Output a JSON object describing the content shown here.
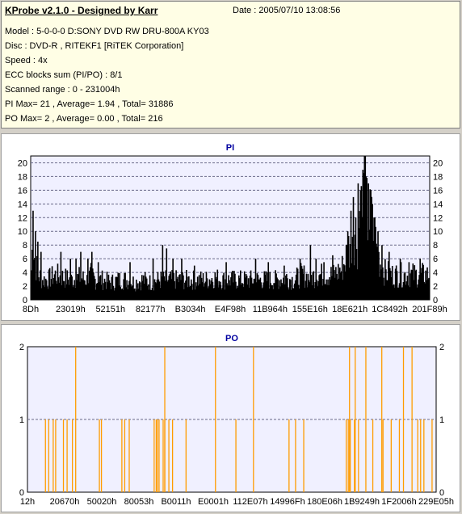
{
  "header": {
    "title": "KProbe v2.1.0 - Designed by Karr",
    "date": "Date : 2005/07/10 13:08:56",
    "lines": [
      "Model : 5-0-0-0 D:SONY    DVD RW DRU-800A  KY03",
      "Disc : DVD-R , RITEKF1 [RiTEK Corporation]",
      "Speed : 4x",
      "ECC blocks sum (PI/PO) : 8/1",
      "Scanned range : 0 - 231004h",
      "PI Max= 21 , Average= 1.94 , Total= 31886",
      "PO Max= 2 , Average= 0.00 , Total= 216"
    ]
  },
  "colors": {
    "panel_bg": "#f0f0ff",
    "pi_bar": "#000000",
    "po_bar": "#ff9c00",
    "grid": "#6a6a8a"
  },
  "chart_data": [
    {
      "type": "bar",
      "title": "PI",
      "xlim": [
        0,
        231004
      ],
      "ylim": [
        0,
        21
      ],
      "yticks": [
        0,
        2,
        4,
        6,
        8,
        10,
        12,
        14,
        16,
        18,
        20
      ],
      "xtick_labels": [
        "8Dh",
        "23019h",
        "52151h",
        "82177h",
        "B3034h",
        "E4F98h",
        "11B964h",
        "155E16h",
        "18E621h",
        "1C8492h",
        "201F89h"
      ],
      "grid": true,
      "profile": [
        [
          0,
          6
        ],
        [
          2,
          13
        ],
        [
          4,
          9
        ],
        [
          6,
          7
        ],
        [
          9,
          5
        ],
        [
          14,
          4
        ],
        [
          20,
          4
        ],
        [
          30,
          5
        ],
        [
          40,
          4.5
        ],
        [
          50,
          4
        ],
        [
          60,
          4.5
        ],
        [
          70,
          4
        ],
        [
          75,
          5
        ],
        [
          80,
          4
        ],
        [
          90,
          4
        ],
        [
          100,
          3.5
        ],
        [
          110,
          4
        ],
        [
          120,
          4
        ],
        [
          130,
          3.5
        ],
        [
          140,
          4
        ],
        [
          150,
          3.5
        ],
        [
          160,
          4
        ],
        [
          170,
          4
        ],
        [
          180,
          4
        ],
        [
          190,
          4
        ],
        [
          200,
          4
        ],
        [
          210,
          4
        ],
        [
          220,
          4
        ],
        [
          230,
          4.5
        ],
        [
          240,
          4
        ],
        [
          250,
          4
        ],
        [
          260,
          4
        ],
        [
          270,
          4
        ],
        [
          280,
          4
        ],
        [
          290,
          4
        ],
        [
          300,
          4
        ],
        [
          310,
          4
        ],
        [
          320,
          4.5
        ],
        [
          330,
          4
        ],
        [
          340,
          5
        ],
        [
          350,
          4.5
        ],
        [
          360,
          5
        ],
        [
          370,
          5
        ],
        [
          380,
          5
        ],
        [
          390,
          6
        ],
        [
          395,
          8
        ],
        [
          400,
          11
        ],
        [
          405,
          15
        ],
        [
          410,
          12
        ],
        [
          413,
          17
        ],
        [
          416,
          18
        ],
        [
          419,
          21
        ],
        [
          422,
          17
        ],
        [
          425,
          16
        ],
        [
          428,
          15
        ],
        [
          432,
          12
        ],
        [
          436,
          9
        ],
        [
          440,
          7
        ],
        [
          445,
          5.5
        ],
        [
          455,
          5
        ],
        [
          470,
          5
        ],
        [
          482,
          5
        ],
        [
          495,
          5
        ],
        [
          500,
          5
        ]
      ],
      "spikes": [
        [
          2,
          13
        ],
        [
          5,
          10
        ],
        [
          8,
          8.5
        ],
        [
          12,
          7
        ],
        [
          37,
          7
        ],
        [
          49,
          6
        ],
        [
          56,
          6
        ],
        [
          62,
          7
        ],
        [
          71,
          6
        ],
        [
          76,
          7
        ],
        [
          84,
          5.5
        ],
        [
          124,
          5.5
        ],
        [
          153,
          6
        ],
        [
          165,
          8
        ],
        [
          170,
          7.5
        ],
        [
          178,
          6
        ],
        [
          189,
          6
        ],
        [
          205,
          5
        ],
        [
          245,
          5.5
        ],
        [
          282,
          6
        ],
        [
          298,
          5.5
        ],
        [
          318,
          5
        ],
        [
          338,
          6
        ],
        [
          351,
          8
        ],
        [
          358,
          6
        ],
        [
          368,
          5.5
        ],
        [
          379,
          6.5
        ],
        [
          398,
          10
        ],
        [
          402,
          13
        ],
        [
          405,
          15
        ],
        [
          408,
          12
        ],
        [
          411,
          17
        ],
        [
          414,
          16
        ],
        [
          417,
          19
        ],
        [
          419,
          21
        ],
        [
          421,
          18
        ],
        [
          424,
          17
        ],
        [
          427,
          16
        ],
        [
          429,
          14
        ],
        [
          432,
          12
        ],
        [
          436,
          10
        ],
        [
          441,
          8
        ],
        [
          450,
          7
        ],
        [
          464,
          6
        ],
        [
          475,
          5.5
        ],
        [
          489,
          6
        ]
      ]
    },
    {
      "type": "bar",
      "title": "PO",
      "xlim": [
        0,
        231004
      ],
      "ylim": [
        0,
        2
      ],
      "yticks": [
        0,
        1,
        2
      ],
      "xtick_labels": [
        "12h",
        "20670h",
        "50020h",
        "80053h",
        "B0011h",
        "E0001h",
        "112E07h",
        "14996Fh",
        "180E06h",
        "1B9249h",
        "1F2006h",
        "229E05h"
      ],
      "grid": true,
      "ones": [
        0.044,
        0.052,
        0.063,
        0.069,
        0.088,
        0.097,
        0.11,
        0.176,
        0.181,
        0.231,
        0.238,
        0.249,
        0.31,
        0.315,
        0.318,
        0.322,
        0.332,
        0.336,
        0.346,
        0.355,
        0.388,
        0.51,
        0.64,
        0.656,
        0.676,
        0.78,
        0.785,
        0.79,
        0.8,
        0.81,
        0.845,
        0.87,
        0.89,
        0.91,
        0.955,
        0.962,
        0.97,
        0.99
      ],
      "twos": [
        0.118,
        0.336,
        0.46,
        0.553,
        0.788,
        0.802,
        0.828,
        0.867,
        0.92,
        0.941
      ]
    }
  ]
}
